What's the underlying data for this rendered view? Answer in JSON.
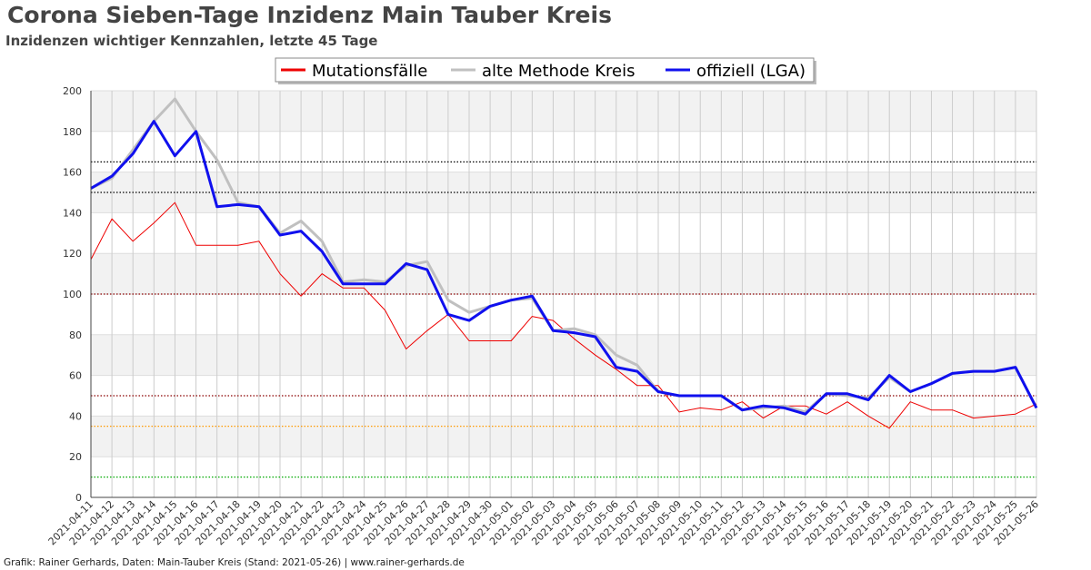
{
  "title": "Corona Sieben-Tage Inzidenz Main Tauber Kreis",
  "subtitle": "Inzidenzen wichtiger Kennzahlen, letzte 45 Tage",
  "footer": "Grafik: Rainer Gerhards, Daten: Main-Tauber Kreis (Stand: 2021-05-26) | www.rainer-gerhards.de",
  "chart_data": {
    "type": "line",
    "ylim": [
      0,
      200
    ],
    "yticks": [
      0,
      20,
      40,
      60,
      80,
      100,
      120,
      140,
      160,
      180,
      200
    ],
    "legend_position": "top-center",
    "grid": true,
    "categories": [
      "2021-04-11",
      "2021-04-12",
      "2021-04-13",
      "2021-04-14",
      "2021-04-15",
      "2021-04-16",
      "2021-04-17",
      "2021-04-18",
      "2021-04-19",
      "2021-04-20",
      "2021-04-21",
      "2021-04-22",
      "2021-04-23",
      "2021-04-24",
      "2021-04-25",
      "2021-04-26",
      "2021-04-27",
      "2021-04-28",
      "2021-04-29",
      "2021-04-30",
      "2021-05-01",
      "2021-05-02",
      "2021-05-03",
      "2021-05-04",
      "2021-05-05",
      "2021-05-06",
      "2021-05-07",
      "2021-05-08",
      "2021-05-09",
      "2021-05-10",
      "2021-05-11",
      "2021-05-12",
      "2021-05-13",
      "2021-05-14",
      "2021-05-15",
      "2021-05-16",
      "2021-05-17",
      "2021-05-18",
      "2021-05-19",
      "2021-05-20",
      "2021-05-21",
      "2021-05-22",
      "2021-05-23",
      "2021-05-24",
      "2021-05-25",
      "2021-05-26"
    ],
    "series": [
      {
        "name": "Mutationsfälle",
        "color": "#ee0000",
        "values": [
          117,
          137,
          126,
          135,
          145,
          124,
          124,
          124,
          126,
          110,
          99,
          110,
          103,
          103,
          92,
          73,
          82,
          90,
          77,
          77,
          77,
          89,
          87,
          78,
          70,
          63,
          55,
          55,
          42,
          44,
          43,
          47,
          39,
          45,
          45,
          41,
          47,
          40,
          34,
          47,
          43,
          43,
          39,
          40,
          41,
          46
        ]
      },
      {
        "name": "alte Methode Kreis",
        "color": "#c0c0c0",
        "values": [
          152,
          157,
          171,
          185,
          196,
          180,
          166,
          145,
          143,
          130,
          136,
          126,
          106,
          107,
          106,
          114,
          116,
          97,
          91,
          94,
          97,
          98,
          82,
          83,
          80,
          70,
          65,
          52,
          50,
          50,
          50,
          43,
          44,
          45,
          42,
          51,
          50,
          49,
          59,
          52,
          56,
          61,
          62,
          62,
          64,
          44
        ]
      },
      {
        "name": "offiziell (LGA)",
        "color": "#1010ee",
        "values": [
          152,
          158,
          169,
          185,
          168,
          180,
          143,
          144,
          143,
          129,
          131,
          121,
          105,
          105,
          105,
          115,
          112,
          90,
          87,
          94,
          97,
          99,
          82,
          81,
          79,
          64,
          62,
          52,
          50,
          50,
          50,
          43,
          45,
          44,
          41,
          51,
          51,
          48,
          60,
          52,
          56,
          61,
          62,
          62,
          64,
          44
        ]
      }
    ],
    "reference_lines": [
      {
        "value": 165,
        "color": "#000000"
      },
      {
        "value": 150,
        "color": "#000000"
      },
      {
        "value": 100,
        "color": "#8b0000"
      },
      {
        "value": 50,
        "color": "#8b0000"
      },
      {
        "value": 35,
        "color": "#ff9900"
      },
      {
        "value": 10,
        "color": "#00aa00"
      }
    ]
  }
}
